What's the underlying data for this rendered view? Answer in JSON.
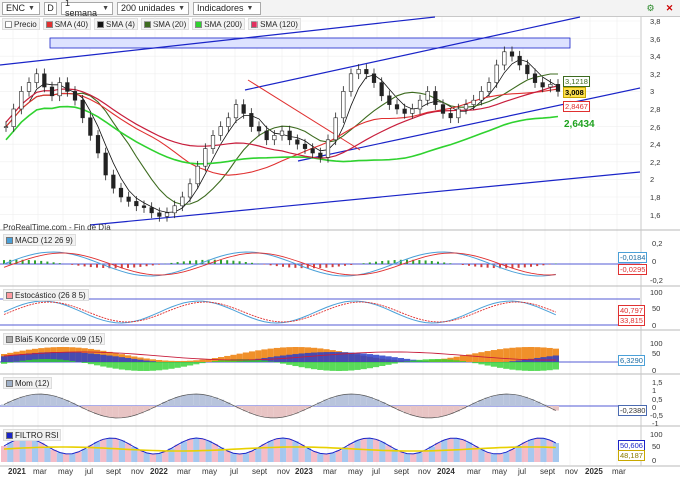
{
  "toolbar": {
    "ticker": "ENC",
    "d_label": "D",
    "timeframe": "1 semana",
    "units": "200 unidades",
    "indicators": "Indicadores"
  },
  "legend": [
    {
      "label": "Precio",
      "color": "#ffffff"
    },
    {
      "label": "SMA (40)",
      "color": "#e03030"
    },
    {
      "label": "SMA (4)",
      "color": "#111111"
    },
    {
      "label": "SMA (20)",
      "color": "#3d6b1f"
    },
    {
      "label": "SMA (200)",
      "color": "#2fd22f"
    },
    {
      "label": "SMA (120)",
      "color": "#e03060"
    }
  ],
  "price_axis": [
    "3,8",
    "3,6",
    "3,4",
    "3,2",
    "3",
    "2,8",
    "2,6",
    "2,4",
    "2,2",
    "2",
    "1,8",
    "1,6"
  ],
  "price_tags": {
    "sma20": "3,1218",
    "price": "3,008",
    "sma40": "2,8467",
    "sma200": "2,6434"
  },
  "watermark": "ProRealTime.com - Fin de Día",
  "panels": {
    "macd": {
      "title": "MACD (12 26 9)",
      "axis": [
        "0,2",
        "0",
        "-0,2"
      ],
      "tags": [
        "-0,0184",
        "-0,0295"
      ]
    },
    "stoch": {
      "title": "Estocástico (26 8 5)",
      "axis": [
        "100",
        "50",
        "0"
      ],
      "tags": [
        "40,797",
        "33,815"
      ]
    },
    "blai": {
      "title": "Blai5 Koncorde v.09 (15)",
      "axis": [
        "100",
        "50",
        "0"
      ],
      "tags": [
        "6,3290"
      ]
    },
    "mom": {
      "title": "Mom (12)",
      "axis": [
        "1,5",
        "1",
        "0,5",
        "0",
        "-0,5",
        "-1"
      ],
      "tags": [
        "-0,2380"
      ]
    },
    "rsi": {
      "title": "FILTRO RSI",
      "axis": [
        "100",
        "50",
        "0"
      ],
      "tags": [
        "50,606",
        "48,187"
      ]
    }
  },
  "x_axis": [
    "2021",
    "mar",
    "may",
    "jul",
    "sept",
    "nov",
    "2022",
    "mar",
    "may",
    "jul",
    "sept",
    "nov",
    "2023",
    "mar",
    "may",
    "jul",
    "sept",
    "nov",
    "2024",
    "mar",
    "may",
    "jul",
    "sept",
    "nov",
    "2025",
    "mar"
  ],
  "colors": {
    "channel": "#1a24c8",
    "sma40": "#e03030",
    "sma20": "#3d6b1f",
    "sma200": "#2fd22f",
    "sma120": "#c81e3c"
  }
}
